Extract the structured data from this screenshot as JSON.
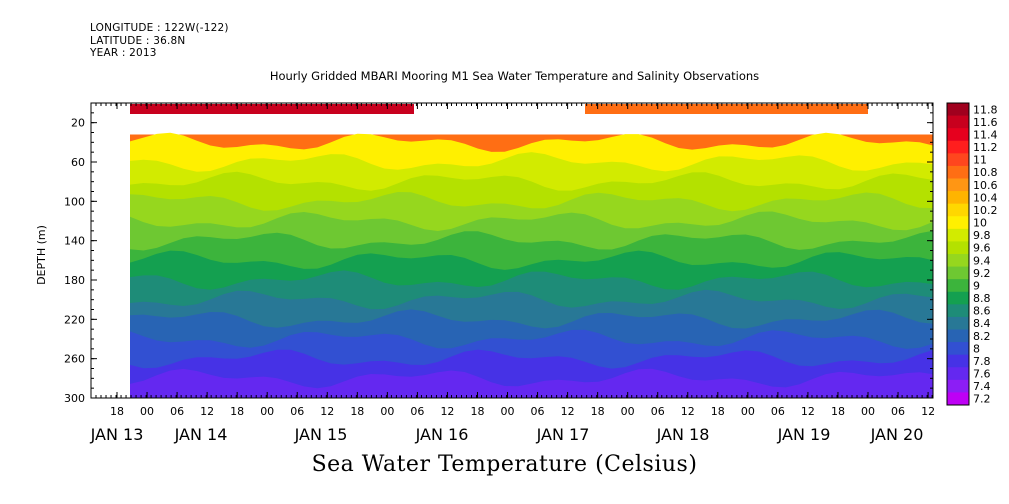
{
  "header": {
    "longitude": "LONGITUDE : 122W(-122)",
    "latitude": "LATITUDE : 36.8N",
    "year": "YEAR : 2013"
  },
  "chart_data": {
    "type": "heatmap",
    "title": "Hourly Gridded MBARI Mooring M1 Sea Water Temperature and Salinity Observations",
    "variable_label": "Sea Water Temperature (Celsius)",
    "ylabel": "DEPTH (m)",
    "ylim": [
      300,
      0
    ],
    "y_ticks": [
      20,
      60,
      100,
      140,
      180,
      220,
      260,
      300
    ],
    "x_hour_ticks": [
      "18",
      "00",
      "06",
      "12",
      "18",
      "00",
      "06",
      "12",
      "18",
      "00",
      "06",
      "12",
      "18",
      "00",
      "06",
      "12",
      "18",
      "00",
      "06",
      "12",
      "18",
      "00",
      "06",
      "12",
      "18",
      "00",
      "06",
      "12"
    ],
    "x_day_labels": [
      "JAN 13",
      "JAN 14",
      "JAN 15",
      "JAN 16",
      "JAN 17",
      "JAN 18",
      "JAN 19",
      "JAN 20"
    ],
    "colorbar": {
      "levels": [
        "11.8",
        "11.6",
        "11.4",
        "11.2",
        "11",
        "10.8",
        "10.6",
        "10.4",
        "10.2",
        "10",
        "9.8",
        "9.6",
        "9.4",
        "9.2",
        "9",
        "8.8",
        "8.6",
        "8.4",
        "8.2",
        "8",
        "7.8",
        "7.6",
        "7.4",
        "7.2"
      ],
      "colors": [
        "#a0001e",
        "#c8001e",
        "#e6001e",
        "#ff1e1e",
        "#ff461e",
        "#ff6e14",
        "#ff9614",
        "#ffb400",
        "#ffd700",
        "#fff000",
        "#d2eb00",
        "#b4e100",
        "#96d71e",
        "#6ec832",
        "#3cb43c",
        "#14a050",
        "#1e8c78",
        "#287896",
        "#2864b4",
        "#3250d2",
        "#4632e6",
        "#6428f0",
        "#8c1ef5",
        "#be00f5"
      ]
    },
    "depth_bands": [
      {
        "depth": 15,
        "temp": "11.6"
      },
      {
        "depth": 40,
        "temp": "10.8"
      },
      {
        "depth": 60,
        "temp": "10.0"
      },
      {
        "depth": 80,
        "temp": "9.8"
      },
      {
        "depth": 100,
        "temp": "9.6"
      },
      {
        "depth": 120,
        "temp": "9.4"
      },
      {
        "depth": 140,
        "temp": "9.2"
      },
      {
        "depth": 160,
        "temp": "9.0"
      },
      {
        "depth": 180,
        "temp": "8.8"
      },
      {
        "depth": 200,
        "temp": "8.6"
      },
      {
        "depth": 220,
        "temp": "8.4"
      },
      {
        "depth": 240,
        "temp": "8.2"
      },
      {
        "depth": 260,
        "temp": "8.0"
      },
      {
        "depth": 280,
        "temp": "7.8"
      },
      {
        "depth": 300,
        "temp": "7.6"
      }
    ]
  }
}
